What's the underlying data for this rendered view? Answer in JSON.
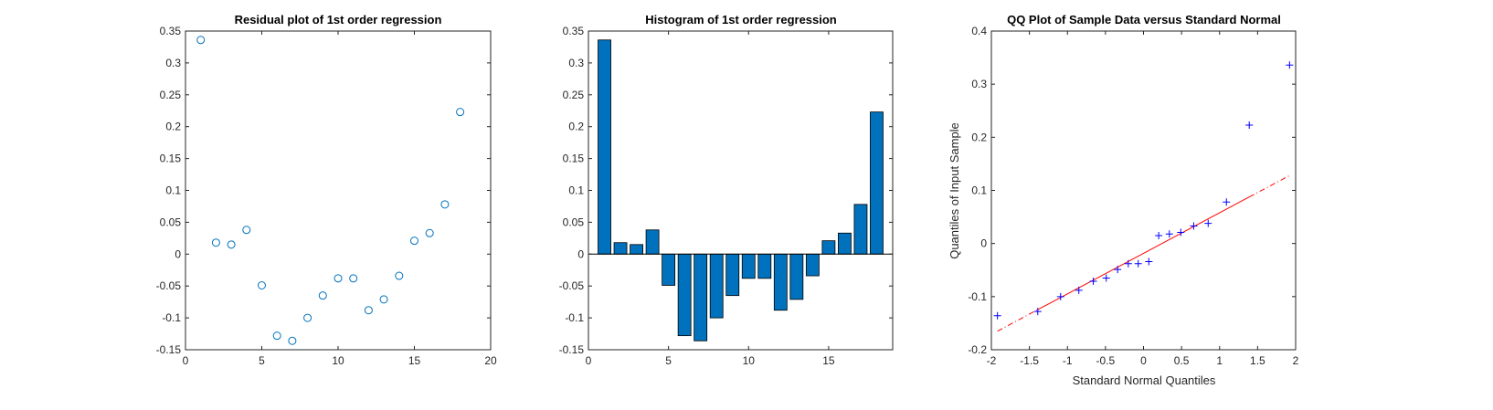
{
  "chart_data": [
    {
      "type": "scatter",
      "title": "Residual plot of 1st order regression",
      "xlabel": "",
      "ylabel": "",
      "xlim": [
        0,
        20
      ],
      "ylim": [
        -0.15,
        0.35
      ],
      "xticks": [
        "0",
        "5",
        "10",
        "15",
        "20"
      ],
      "yticks": [
        "-0.15",
        "-0.1",
        "-0.05",
        "0",
        "0.05",
        "0.1",
        "0.15",
        "0.2",
        "0.25",
        "0.3",
        "0.35"
      ],
      "marker_color": "#0072BD",
      "x": [
        1,
        2,
        3,
        4,
        5,
        6,
        7,
        8,
        9,
        10,
        11,
        12,
        13,
        14,
        15,
        16,
        17,
        18
      ],
      "y": [
        0.336,
        0.018,
        0.015,
        0.038,
        -0.049,
        -0.128,
        -0.136,
        -0.1,
        -0.065,
        -0.038,
        -0.038,
        -0.088,
        -0.071,
        -0.034,
        0.021,
        0.033,
        0.078,
        0.223
      ],
      "grid": false
    },
    {
      "type": "bar",
      "title": "Histogram of 1st order regression",
      "xlabel": "",
      "ylabel": "",
      "xlim": [
        0,
        19
      ],
      "ylim": [
        -0.15,
        0.35
      ],
      "xticks": [
        "0",
        "5",
        "10",
        "15"
      ],
      "yticks": [
        "-0.15",
        "-0.1",
        "-0.05",
        "0",
        "0.05",
        "0.1",
        "0.15",
        "0.2",
        "0.25",
        "0.3",
        "0.35"
      ],
      "bar_color": "#0072BD",
      "categories": [
        1,
        2,
        3,
        4,
        5,
        6,
        7,
        8,
        9,
        10,
        11,
        12,
        13,
        14,
        15,
        16,
        17,
        18
      ],
      "values": [
        0.336,
        0.018,
        0.015,
        0.038,
        -0.049,
        -0.128,
        -0.136,
        -0.1,
        -0.065,
        -0.038,
        -0.038,
        -0.088,
        -0.071,
        -0.034,
        0.021,
        0.033,
        0.078,
        0.223
      ],
      "grid": false
    },
    {
      "type": "scatter",
      "title": "QQ Plot of Sample Data versus Standard Normal",
      "xlabel": "Standard Normal Quantiles",
      "ylabel": "Quantiles of Input Sample",
      "xlim": [
        -2,
        2
      ],
      "ylim": [
        -0.2,
        0.4
      ],
      "xticks": [
        "-2",
        "-1.5",
        "-1",
        "-0.5",
        "0",
        "0.5",
        "1",
        "1.5",
        "2"
      ],
      "yticks": [
        "-0.2",
        "-0.1",
        "0",
        "0.1",
        "0.2",
        "0.3",
        "0.4"
      ],
      "marker_color": "#0000FF",
      "line_color": "#FF0000",
      "x": [
        -1.92,
        -1.39,
        -1.09,
        -0.85,
        -0.66,
        -0.49,
        -0.34,
        -0.2,
        -0.07,
        0.07,
        0.2,
        0.34,
        0.49,
        0.66,
        0.85,
        1.09,
        1.39,
        1.92
      ],
      "y": [
        -0.136,
        -0.128,
        -0.1,
        -0.088,
        -0.071,
        -0.065,
        -0.049,
        -0.038,
        -0.038,
        -0.034,
        0.015,
        0.018,
        0.021,
        0.033,
        0.038,
        0.078,
        0.223,
        0.336
      ],
      "reference_line": {
        "x": [
          -1.92,
          1.92
        ],
        "y": [
          -0.165,
          0.128
        ],
        "solid_x_range": [
          -1.39,
          1.39
        ]
      },
      "grid": false
    }
  ]
}
